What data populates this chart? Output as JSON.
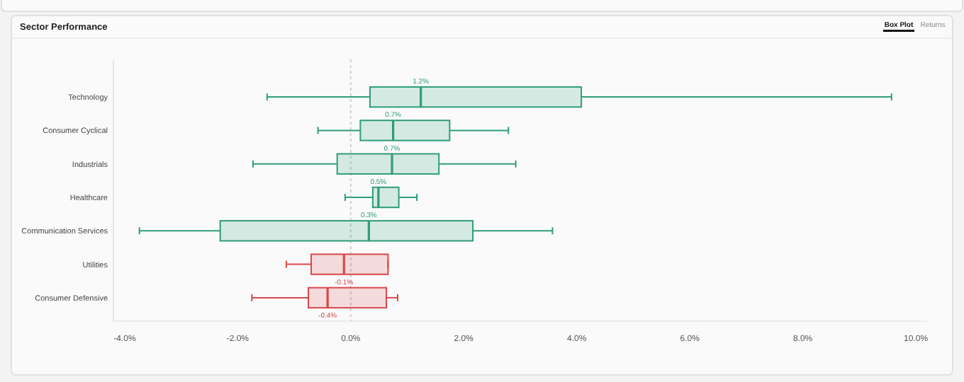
{
  "chart_data": {
    "type": "box",
    "title": "Sector Performance",
    "orientation": "horizontal",
    "categories": [
      "Technology",
      "Consumer Cyclical",
      "Industrials",
      "Healthcare",
      "Communication Services",
      "Utilities",
      "Consumer Defensive"
    ],
    "boxes": [
      {
        "low": -1.48,
        "q1": 0.34,
        "median": 1.24,
        "q3": 4.08,
        "high": 9.57
      },
      {
        "low": -0.58,
        "q1": 0.17,
        "median": 0.75,
        "q3": 1.75,
        "high": 2.79
      },
      {
        "low": -1.73,
        "q1": -0.24,
        "median": 0.73,
        "q3": 1.56,
        "high": 2.92
      },
      {
        "low": -0.1,
        "q1": 0.39,
        "median": 0.49,
        "q3": 0.85,
        "high": 1.17
      },
      {
        "low": -3.74,
        "q1": -2.31,
        "median": 0.32,
        "q3": 2.16,
        "high": 3.57
      },
      {
        "low": -1.14,
        "q1": -0.7,
        "median": -0.12,
        "q3": 0.66,
        "high": 0.66
      },
      {
        "low": -1.75,
        "q1": -0.75,
        "median": -0.41,
        "q3": 0.63,
        "high": 0.83
      }
    ],
    "colors": [
      "#2e9c7c",
      "#2e9c7c",
      "#2e9c7c",
      "#2e9c7c",
      "#2e9c7c",
      "#d9474b",
      "#d9474b"
    ],
    "value_labels": [
      "1.2%",
      "0.7%",
      "0.7%",
      "0.5%",
      "0.3%",
      "-0.1%",
      "-0.4%"
    ],
    "xlim": [
      -4.2,
      10.2
    ],
    "xticks": [
      {
        "value": -4,
        "label": "-4.0%"
      },
      {
        "value": -2,
        "label": "-2.0%"
      },
      {
        "value": 0,
        "label": "0.0%"
      },
      {
        "value": 2,
        "label": "2.0%"
      },
      {
        "value": 4,
        "label": "4.0%"
      },
      {
        "value": 6,
        "label": "6.0%"
      },
      {
        "value": 8,
        "label": "8.0%"
      },
      {
        "value": 10,
        "label": "10.0%"
      }
    ],
    "grid": false,
    "ref_lines": [
      {
        "axis": "x",
        "value": 0,
        "line_style": "dotted"
      }
    ],
    "annotations": [
      "Box Plot",
      "Returns"
    ]
  }
}
